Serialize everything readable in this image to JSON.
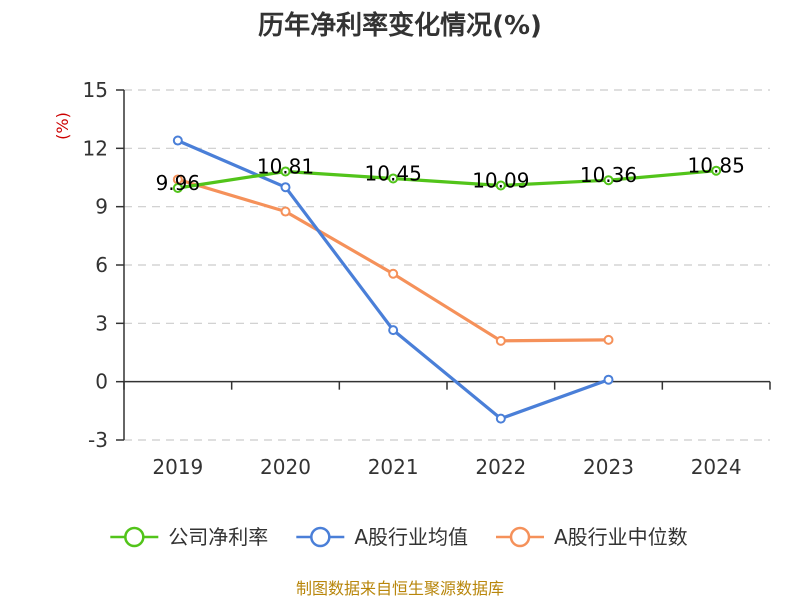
{
  "chart_data": {
    "type": "line",
    "title": "历年净利率变化情况(%)",
    "ylabel": "(%)",
    "xlabel": "",
    "categories": [
      "2019",
      "2020",
      "2021",
      "2022",
      "2023",
      "2024"
    ],
    "ylim": [
      -3,
      15
    ],
    "yticks": [
      15,
      12,
      9,
      6,
      3,
      0,
      -3
    ],
    "grid": true,
    "legend_position": "bottom",
    "series": [
      {
        "name": "公司净利率",
        "color": "#52c41a",
        "values": [
          9.96,
          10.81,
          10.45,
          10.09,
          10.36,
          10.85
        ],
        "labels": [
          "9.96",
          "10.81",
          "10.45",
          "10.09",
          "10.36",
          "10.85"
        ]
      },
      {
        "name": "A股行业均值",
        "color": "#4a7fd8",
        "values": [
          12.4,
          10.0,
          2.65,
          -1.9,
          0.1,
          null
        ]
      },
      {
        "name": "A股行业中位数",
        "color": "#f5915a",
        "values": [
          10.4,
          8.75,
          5.55,
          2.1,
          2.15,
          null
        ]
      }
    ]
  },
  "footer": {
    "source": "制图数据来自恒生聚源数据库"
  }
}
